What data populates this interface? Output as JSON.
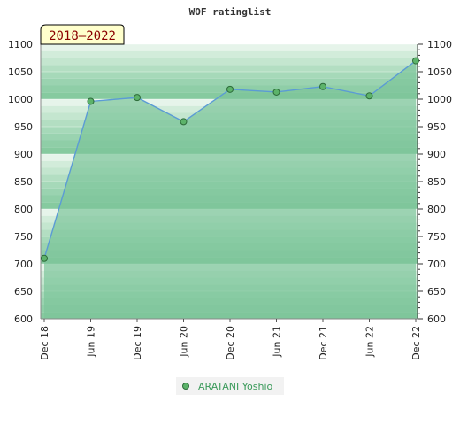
{
  "chart_data": {
    "type": "area",
    "title": "WOF ratinglist",
    "period_label": "2018–2022",
    "x_categories": [
      "Dec 18",
      "Jun 19",
      "Dec 19",
      "Jun 20",
      "Dec 20",
      "Jun 21",
      "Dec 21",
      "Jun 22",
      "Dec 22"
    ],
    "ylim": [
      600,
      1100
    ],
    "y_ticks": [
      600,
      650,
      700,
      750,
      800,
      850,
      900,
      950,
      1000,
      1050,
      1100
    ],
    "series": [
      {
        "name": "ARATANI Yoshio",
        "x_index": [
          0,
          1,
          2,
          3,
          4,
          5,
          6,
          7,
          8
        ],
        "values": [
          710,
          996,
          1003,
          959,
          1018,
          1013,
          1023,
          1006,
          1070
        ]
      }
    ],
    "grid": true,
    "legend": "bottom-center",
    "colors": {
      "line": "#5b9bd5",
      "marker": "#5cb36a",
      "fill": "#7cc59a",
      "band_light": "#eaf6ee",
      "band_dark": "#b5dfc3"
    }
  }
}
